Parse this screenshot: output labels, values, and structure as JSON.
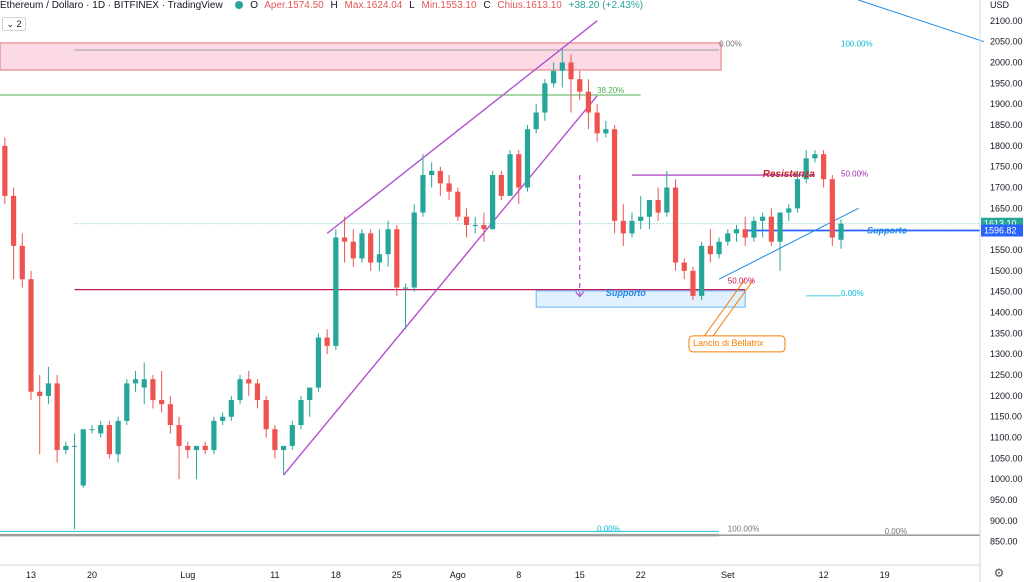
{
  "header": {
    "symbol": "Ethereum / Dollaro · 1D · BITFINEX · TradingView",
    "open_label": "O",
    "open": "Aper.1574.50",
    "high_label": "H",
    "high": "Max.1624.04",
    "low_label": "L",
    "low": "Min.1553.10",
    "close_label": "C",
    "close": "Chius.1613.10",
    "change": "+38.20 (+2.43%)",
    "layers_label": "2"
  },
  "colors": {
    "up": "#26a69a",
    "down": "#ef5350",
    "channel": "#b44fd1",
    "support_h": "#c2185b",
    "resistance_h": "#9c27b0",
    "fib_green": "#4caf50",
    "fib_cyan": "#00bcd4",
    "zone_red": "#f8bbd0",
    "zone_blue": "#bbdefb",
    "callout": "#f57c00",
    "axis_badge_blue": "#2962ff"
  },
  "chart_data": {
    "type": "candlestick",
    "title": "Ethereum / Dollaro · 1D · BITFINEX",
    "ylabel": "USD",
    "ylim": [
      835,
      2150
    ],
    "price_ticks": [
      850,
      900,
      950,
      1000,
      1050,
      1100,
      1150,
      1200,
      1250,
      1300,
      1350,
      1400,
      1450,
      1500,
      1550,
      1600,
      1650,
      1700,
      1750,
      1800,
      1850,
      1900,
      1950,
      2000,
      2050,
      2100
    ],
    "time_ticks": [
      {
        "label": "13",
        "day": 0
      },
      {
        "label": "20",
        "day": 7
      },
      {
        "label": "Lug",
        "day": 18
      },
      {
        "label": "11",
        "day": 28
      },
      {
        "label": "18",
        "day": 35
      },
      {
        "label": "25",
        "day": 42
      },
      {
        "label": "Ago",
        "day": 49
      },
      {
        "label": "8",
        "day": 56
      },
      {
        "label": "15",
        "day": 63
      },
      {
        "label": "22",
        "day": 70
      },
      {
        "label": "Set",
        "day": 80
      },
      {
        "label": "12",
        "day": 91
      },
      {
        "label": "19",
        "day": 98
      }
    ],
    "candles": [
      {
        "d": -3,
        "o": 1800,
        "h": 1820,
        "c": 1680,
        "l": 1660
      },
      {
        "d": -2,
        "o": 1680,
        "h": 1700,
        "c": 1560,
        "l": 1480
      },
      {
        "d": -1,
        "o": 1560,
        "h": 1590,
        "c": 1480,
        "l": 1460
      },
      {
        "d": 0,
        "o": 1480,
        "h": 1500,
        "c": 1210,
        "l": 1190
      },
      {
        "d": 1,
        "o": 1210,
        "h": 1250,
        "c": 1200,
        "l": 1060
      },
      {
        "d": 2,
        "o": 1200,
        "h": 1270,
        "c": 1230,
        "l": 1180
      },
      {
        "d": 3,
        "o": 1230,
        "h": 1250,
        "c": 1070,
        "l": 1040
      },
      {
        "d": 4,
        "o": 1070,
        "h": 1090,
        "c": 1080,
        "l": 1060
      },
      {
        "d": 5,
        "o": 1080,
        "h": 1110,
        "c": 1080,
        "l": 880
      },
      {
        "d": 6,
        "o": 985,
        "h": 1120,
        "c": 1120,
        "l": 980
      },
      {
        "d": 7,
        "o": 1120,
        "h": 1130,
        "c": 1120,
        "l": 1110
      },
      {
        "d": 8,
        "o": 1110,
        "h": 1140,
        "c": 1130,
        "l": 1100
      },
      {
        "d": 9,
        "o": 1130,
        "h": 1140,
        "c": 1060,
        "l": 1050
      },
      {
        "d": 10,
        "o": 1060,
        "h": 1150,
        "c": 1140,
        "l": 1040
      },
      {
        "d": 11,
        "o": 1140,
        "h": 1240,
        "c": 1230,
        "l": 1130
      },
      {
        "d": 12,
        "o": 1230,
        "h": 1260,
        "c": 1240,
        "l": 1210
      },
      {
        "d": 13,
        "o": 1220,
        "h": 1280,
        "c": 1240,
        "l": 1180
      },
      {
        "d": 14,
        "o": 1240,
        "h": 1250,
        "c": 1190,
        "l": 1170
      },
      {
        "d": 15,
        "o": 1190,
        "h": 1260,
        "c": 1180,
        "l": 1160
      },
      {
        "d": 16,
        "o": 1180,
        "h": 1200,
        "c": 1130,
        "l": 1110
      },
      {
        "d": 17,
        "o": 1130,
        "h": 1150,
        "c": 1080,
        "l": 1000
      },
      {
        "d": 18,
        "o": 1080,
        "h": 1090,
        "c": 1070,
        "l": 1050
      },
      {
        "d": 19,
        "o": 1070,
        "h": 1080,
        "c": 1080,
        "l": 1000
      },
      {
        "d": 20,
        "o": 1080,
        "h": 1090,
        "c": 1070,
        "l": 1060
      },
      {
        "d": 21,
        "o": 1070,
        "h": 1150,
        "c": 1140,
        "l": 1060
      },
      {
        "d": 22,
        "o": 1140,
        "h": 1160,
        "c": 1150,
        "l": 1130
      },
      {
        "d": 23,
        "o": 1150,
        "h": 1200,
        "c": 1190,
        "l": 1140
      },
      {
        "d": 24,
        "o": 1190,
        "h": 1250,
        "c": 1240,
        "l": 1180
      },
      {
        "d": 25,
        "o": 1240,
        "h": 1260,
        "c": 1230,
        "l": 1200
      },
      {
        "d": 26,
        "o": 1230,
        "h": 1240,
        "c": 1190,
        "l": 1170
      },
      {
        "d": 27,
        "o": 1190,
        "h": 1200,
        "c": 1120,
        "l": 1100
      },
      {
        "d": 28,
        "o": 1120,
        "h": 1130,
        "c": 1070,
        "l": 1050
      },
      {
        "d": 29,
        "o": 1070,
        "h": 1080,
        "c": 1080,
        "l": 1010
      },
      {
        "d": 30,
        "o": 1080,
        "h": 1140,
        "c": 1130,
        "l": 1070
      },
      {
        "d": 31,
        "o": 1130,
        "h": 1200,
        "c": 1190,
        "l": 1120
      },
      {
        "d": 32,
        "o": 1190,
        "h": 1220,
        "c": 1220,
        "l": 1150
      },
      {
        "d": 33,
        "o": 1220,
        "h": 1350,
        "c": 1340,
        "l": 1210
      },
      {
        "d": 34,
        "o": 1340,
        "h": 1360,
        "c": 1320,
        "l": 1300
      },
      {
        "d": 35,
        "o": 1320,
        "h": 1600,
        "c": 1580,
        "l": 1310
      },
      {
        "d": 36,
        "o": 1580,
        "h": 1630,
        "c": 1570,
        "l": 1520
      },
      {
        "d": 37,
        "o": 1570,
        "h": 1600,
        "c": 1530,
        "l": 1510
      },
      {
        "d": 38,
        "o": 1530,
        "h": 1600,
        "c": 1590,
        "l": 1520
      },
      {
        "d": 39,
        "o": 1590,
        "h": 1600,
        "c": 1520,
        "l": 1500
      },
      {
        "d": 40,
        "o": 1520,
        "h": 1600,
        "c": 1540,
        "l": 1500
      },
      {
        "d": 41,
        "o": 1540,
        "h": 1620,
        "c": 1600,
        "l": 1510
      },
      {
        "d": 42,
        "o": 1600,
        "h": 1610,
        "c": 1460,
        "l": 1440
      },
      {
        "d": 43,
        "o": 1460,
        "h": 1470,
        "c": 1460,
        "l": 1360
      },
      {
        "d": 44,
        "o": 1460,
        "h": 1660,
        "c": 1640,
        "l": 1450
      },
      {
        "d": 45,
        "o": 1640,
        "h": 1780,
        "c": 1730,
        "l": 1630
      },
      {
        "d": 46,
        "o": 1730,
        "h": 1760,
        "c": 1740,
        "l": 1700
      },
      {
        "d": 47,
        "o": 1740,
        "h": 1750,
        "c": 1710,
        "l": 1680
      },
      {
        "d": 48,
        "o": 1710,
        "h": 1730,
        "c": 1690,
        "l": 1670
      },
      {
        "d": 49,
        "o": 1690,
        "h": 1700,
        "c": 1630,
        "l": 1620
      },
      {
        "d": 50,
        "o": 1630,
        "h": 1650,
        "c": 1610,
        "l": 1580
      },
      {
        "d": 51,
        "o": 1610,
        "h": 1630,
        "c": 1610,
        "l": 1590
      },
      {
        "d": 52,
        "o": 1610,
        "h": 1640,
        "c": 1600,
        "l": 1570
      },
      {
        "d": 53,
        "o": 1600,
        "h": 1740,
        "c": 1730,
        "l": 1600
      },
      {
        "d": 54,
        "o": 1730,
        "h": 1740,
        "c": 1680,
        "l": 1670
      },
      {
        "d": 55,
        "o": 1680,
        "h": 1790,
        "c": 1780,
        "l": 1680
      },
      {
        "d": 56,
        "o": 1780,
        "h": 1790,
        "c": 1700,
        "l": 1660
      },
      {
        "d": 57,
        "o": 1700,
        "h": 1850,
        "c": 1840,
        "l": 1690
      },
      {
        "d": 58,
        "o": 1840,
        "h": 1900,
        "c": 1880,
        "l": 1830
      },
      {
        "d": 59,
        "o": 1880,
        "h": 1960,
        "c": 1950,
        "l": 1860
      },
      {
        "d": 60,
        "o": 1950,
        "h": 2000,
        "c": 1980,
        "l": 1940
      },
      {
        "d": 61,
        "o": 1980,
        "h": 2030,
        "c": 2000,
        "l": 1940
      },
      {
        "d": 62,
        "o": 2000,
        "h": 2020,
        "c": 1960,
        "l": 1880
      },
      {
        "d": 63,
        "o": 1960,
        "h": 1980,
        "c": 1930,
        "l": 1910
      },
      {
        "d": 64,
        "o": 1930,
        "h": 1960,
        "c": 1880,
        "l": 1840
      },
      {
        "d": 65,
        "o": 1880,
        "h": 1900,
        "c": 1830,
        "l": 1810
      },
      {
        "d": 66,
        "o": 1830,
        "h": 1860,
        "c": 1840,
        "l": 1820
      },
      {
        "d": 67,
        "o": 1840,
        "h": 1850,
        "c": 1620,
        "l": 1590
      },
      {
        "d": 68,
        "o": 1620,
        "h": 1660,
        "c": 1590,
        "l": 1560
      },
      {
        "d": 69,
        "o": 1590,
        "h": 1640,
        "c": 1620,
        "l": 1580
      },
      {
        "d": 70,
        "o": 1620,
        "h": 1680,
        "c": 1630,
        "l": 1600
      },
      {
        "d": 71,
        "o": 1630,
        "h": 1670,
        "c": 1670,
        "l": 1600
      },
      {
        "d": 72,
        "o": 1670,
        "h": 1700,
        "c": 1640,
        "l": 1620
      },
      {
        "d": 73,
        "o": 1640,
        "h": 1740,
        "c": 1700,
        "l": 1630
      },
      {
        "d": 74,
        "o": 1700,
        "h": 1720,
        "c": 1520,
        "l": 1500
      },
      {
        "d": 75,
        "o": 1520,
        "h": 1530,
        "c": 1500,
        "l": 1480
      },
      {
        "d": 76,
        "o": 1500,
        "h": 1510,
        "c": 1440,
        "l": 1430
      },
      {
        "d": 77,
        "o": 1440,
        "h": 1570,
        "c": 1560,
        "l": 1430
      },
      {
        "d": 78,
        "o": 1560,
        "h": 1600,
        "c": 1540,
        "l": 1520
      },
      {
        "d": 79,
        "o": 1540,
        "h": 1580,
        "c": 1570,
        "l": 1530
      },
      {
        "d": 80,
        "o": 1570,
        "h": 1600,
        "c": 1590,
        "l": 1560
      },
      {
        "d": 81,
        "o": 1590,
        "h": 1610,
        "c": 1600,
        "l": 1570
      },
      {
        "d": 82,
        "o": 1600,
        "h": 1630,
        "c": 1580,
        "l": 1560
      },
      {
        "d": 83,
        "o": 1580,
        "h": 1630,
        "c": 1620,
        "l": 1570
      },
      {
        "d": 84,
        "o": 1620,
        "h": 1640,
        "c": 1630,
        "l": 1580
      },
      {
        "d": 85,
        "o": 1630,
        "h": 1650,
        "c": 1570,
        "l": 1560
      },
      {
        "d": 86,
        "o": 1570,
        "h": 1640,
        "c": 1640,
        "l": 1500
      },
      {
        "d": 87,
        "o": 1640,
        "h": 1660,
        "c": 1650,
        "l": 1620
      },
      {
        "d": 88,
        "o": 1650,
        "h": 1740,
        "c": 1720,
        "l": 1640
      },
      {
        "d": 89,
        "o": 1720,
        "h": 1790,
        "c": 1770,
        "l": 1710
      },
      {
        "d": 90,
        "o": 1770,
        "h": 1790,
        "c": 1780,
        "l": 1760
      },
      {
        "d": 91,
        "o": 1780,
        "h": 1790,
        "c": 1720,
        "l": 1700
      },
      {
        "d": 92,
        "o": 1720,
        "h": 1730,
        "c": 1580,
        "l": 1560
      },
      {
        "d": 93,
        "o": 1574.5,
        "h": 1624.04,
        "c": 1613.1,
        "l": 1553.1
      }
    ],
    "annotations": [
      {
        "type": "text",
        "label": "Resistenza",
        "day": 84,
        "price": 1725
      },
      {
        "type": "text",
        "label": "Supporto",
        "day": 66,
        "price": 1440
      },
      {
        "type": "text",
        "label": "Supporto",
        "day": 96,
        "price": 1590
      },
      {
        "type": "text",
        "label": "Lancio di Bellatrix",
        "day": 76,
        "price": 1320
      }
    ],
    "fib_labels": [
      {
        "label": "0.00%",
        "day": 79,
        "price": 2038
      },
      {
        "label": "100.00%",
        "day": 93,
        "price": 2038
      },
      {
        "label": "38.20%",
        "day": 65,
        "price": 1927
      },
      {
        "label": "50.00%",
        "day": 93,
        "price": 1727
      },
      {
        "label": "50.00%",
        "day": 80,
        "price": 1470
      },
      {
        "label": "0.00%",
        "day": 93,
        "price": 1440
      },
      {
        "label": "0.00%",
        "day": 65,
        "price": 875
      },
      {
        "label": "100.00%",
        "day": 80,
        "price": 875
      },
      {
        "label": "0.00%",
        "day": 98,
        "price": 869
      }
    ],
    "price_badges": [
      {
        "label": "1613.10",
        "price": 1613.1,
        "color": "#26a69a"
      },
      {
        "label": "1596.82",
        "price": 1596.82,
        "color": "#2962ff"
      }
    ]
  }
}
